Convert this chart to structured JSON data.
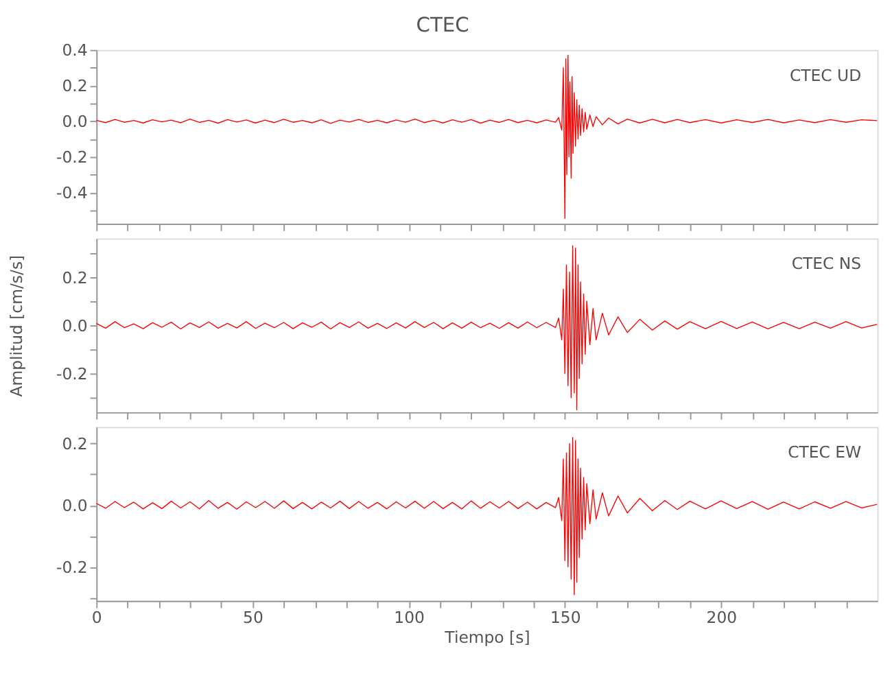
{
  "chart_data": [
    {
      "type": "line",
      "title": "CTEC",
      "annotations": [
        "CTEC   UD"
      ],
      "xlim": [
        0,
        250
      ],
      "ylim": [
        -0.575,
        0.4
      ],
      "tick_labels": "y",
      "grid": false,
      "marker": "none",
      "line_style": "solid",
      "xticks": [
        0,
        {
          "value": 10,
          "label": null
        },
        {
          "value": 20,
          "label": null
        },
        {
          "value": 30,
          "label": null
        },
        {
          "value": 40,
          "label": null
        },
        50,
        {
          "value": 60,
          "label": null
        },
        {
          "value": 70,
          "label": null
        },
        {
          "value": 80,
          "label": null
        },
        {
          "value": 90,
          "label": null
        },
        100,
        {
          "value": 110,
          "label": null
        },
        {
          "value": 120,
          "label": null
        },
        {
          "value": 130,
          "label": null
        },
        {
          "value": 140,
          "label": null
        },
        150,
        {
          "value": 160,
          "label": null
        },
        {
          "value": 170,
          "label": null
        },
        {
          "value": 180,
          "label": null
        },
        {
          "value": 190,
          "label": null
        },
        200,
        {
          "value": 210,
          "label": null
        },
        {
          "value": 220,
          "label": null
        },
        {
          "value": 230,
          "label": null
        },
        {
          "value": 240,
          "label": null
        }
      ],
      "yticks": [
        {
          "value": -0.5,
          "label": null
        },
        -0.4,
        {
          "value": -0.3,
          "label": null
        },
        -0.2,
        {
          "value": -0.1,
          "label": null
        },
        {
          "value": 0,
          "label": "0.0"
        },
        {
          "value": 0.1,
          "label": null
        },
        0.2,
        {
          "value": 0.3,
          "label": null
        },
        0.4
      ],
      "series": [
        {
          "color": "#ff0000",
          "x": [
            0,
            3,
            6,
            9,
            12,
            15,
            18,
            21,
            24,
            27,
            30,
            33,
            36,
            39,
            42,
            45,
            48,
            51,
            54,
            57,
            60,
            63,
            66,
            69,
            72,
            75,
            78,
            81,
            84,
            87,
            90,
            93,
            96,
            99,
            102,
            105,
            108,
            111,
            114,
            117,
            120,
            123,
            126,
            129,
            132,
            135,
            138,
            141,
            144,
            147,
            148,
            149,
            149.5,
            150,
            150.3,
            150.6,
            151,
            151.3,
            151.6,
            152,
            152.3,
            152.6,
            153,
            153.4,
            153.8,
            154.2,
            154.6,
            155,
            155.5,
            156,
            156.5,
            157,
            158,
            159,
            160,
            162,
            164,
            167,
            170,
            174,
            178,
            182,
            186,
            190,
            195,
            200,
            205,
            210,
            215,
            220,
            225,
            230,
            235,
            240,
            245,
            250
          ],
          "values": [
            0.005,
            -0.008,
            0.01,
            -0.006,
            0.004,
            -0.01,
            0.008,
            -0.004,
            0.006,
            -0.009,
            0.012,
            -0.007,
            0.005,
            -0.011,
            0.009,
            -0.005,
            0.007,
            -0.01,
            0.006,
            -0.008,
            0.011,
            -0.006,
            0.004,
            -0.009,
            0.008,
            -0.012,
            0.006,
            -0.005,
            0.01,
            -0.007,
            0.005,
            -0.009,
            0.007,
            -0.006,
            0.012,
            -0.008,
            0.005,
            -0.01,
            0.008,
            -0.006,
            0.009,
            -0.011,
            0.006,
            -0.007,
            0.01,
            -0.008,
            0.005,
            -0.009,
            0.007,
            -0.006,
            0.02,
            -0.05,
            0.3,
            -0.545,
            0.35,
            -0.3,
            0.37,
            -0.2,
            0.22,
            -0.32,
            0.25,
            -0.18,
            0.16,
            -0.14,
            0.12,
            -0.1,
            0.09,
            -0.08,
            0.07,
            -0.06,
            0.05,
            -0.045,
            0.035,
            -0.03,
            0.025,
            -0.02,
            0.018,
            -0.015,
            0.012,
            -0.01,
            0.011,
            -0.009,
            0.01,
            -0.008,
            0.009,
            -0.01,
            0.008,
            -0.007,
            0.01,
            -0.009,
            0.007,
            -0.008,
            0.009,
            -0.006,
            0.008,
            0.003
          ]
        }
      ]
    },
    {
      "type": "line",
      "ylabel": "Amplitud [cm/s/s]",
      "annotations": [
        "CTEC   NS"
      ],
      "xlim": [
        0,
        250
      ],
      "ylim": [
        -0.36,
        0.36
      ],
      "tick_labels": "y",
      "grid": false,
      "marker": "none",
      "line_style": "solid",
      "xticks": [
        0,
        {
          "value": 10,
          "label": null
        },
        {
          "value": 20,
          "label": null
        },
        {
          "value": 30,
          "label": null
        },
        {
          "value": 40,
          "label": null
        },
        50,
        {
          "value": 60,
          "label": null
        },
        {
          "value": 70,
          "label": null
        },
        {
          "value": 80,
          "label": null
        },
        {
          "value": 90,
          "label": null
        },
        100,
        {
          "value": 110,
          "label": null
        },
        {
          "value": 120,
          "label": null
        },
        {
          "value": 130,
          "label": null
        },
        {
          "value": 140,
          "label": null
        },
        150,
        {
          "value": 160,
          "label": null
        },
        {
          "value": 170,
          "label": null
        },
        {
          "value": 180,
          "label": null
        },
        {
          "value": 190,
          "label": null
        },
        200,
        {
          "value": 210,
          "label": null
        },
        {
          "value": 220,
          "label": null
        },
        {
          "value": 230,
          "label": null
        },
        {
          "value": 240,
          "label": null
        }
      ],
      "yticks": [
        {
          "value": -0.3,
          "label": null
        },
        -0.2,
        {
          "value": -0.1,
          "label": null
        },
        {
          "value": 0,
          "label": "0.0"
        },
        {
          "value": 0.1,
          "label": null
        },
        0.2,
        {
          "value": 0.3,
          "label": null
        }
      ],
      "series": [
        {
          "color": "#ff0000",
          "x": [
            0,
            3,
            6,
            9,
            12,
            15,
            18,
            21,
            24,
            27,
            30,
            33,
            36,
            39,
            42,
            45,
            48,
            51,
            54,
            57,
            60,
            63,
            66,
            69,
            72,
            75,
            78,
            81,
            84,
            87,
            90,
            93,
            96,
            99,
            102,
            105,
            108,
            111,
            114,
            117,
            120,
            123,
            126,
            129,
            132,
            135,
            138,
            141,
            144,
            147,
            148,
            149,
            149.5,
            150,
            150.5,
            151,
            151.5,
            152,
            152.5,
            153,
            153.4,
            153.8,
            154.2,
            154.6,
            155,
            155.5,
            156,
            156.5,
            157,
            158,
            159,
            160,
            162,
            164,
            167,
            170,
            174,
            178,
            182,
            186,
            190,
            195,
            200,
            205,
            210,
            215,
            220,
            225,
            230,
            235,
            240,
            245,
            250
          ],
          "values": [
            0.008,
            -0.012,
            0.015,
            -0.01,
            0.006,
            -0.014,
            0.011,
            -0.008,
            0.013,
            -0.015,
            0.01,
            -0.009,
            0.014,
            -0.012,
            0.008,
            -0.011,
            0.015,
            -0.013,
            0.009,
            -0.01,
            0.012,
            -0.014,
            0.01,
            -0.008,
            0.013,
            -0.015,
            0.011,
            -0.009,
            0.014,
            -0.012,
            0.008,
            -0.013,
            0.01,
            -0.011,
            0.015,
            -0.009,
            0.012,
            -0.014,
            0.01,
            -0.012,
            0.013,
            -0.01,
            0.009,
            -0.013,
            0.011,
            -0.012,
            0.014,
            -0.01,
            0.012,
            -0.009,
            0.03,
            -0.06,
            0.15,
            -0.2,
            0.25,
            -0.25,
            0.22,
            -0.3,
            0.33,
            -0.28,
            0.32,
            -0.35,
            0.25,
            -0.22,
            0.18,
            -0.16,
            0.13,
            -0.12,
            0.1,
            -0.08,
            0.07,
            -0.06,
            0.05,
            -0.04,
            0.035,
            -0.03,
            0.025,
            -0.02,
            0.018,
            -0.016,
            0.015,
            -0.014,
            0.016,
            -0.013,
            0.014,
            -0.015,
            0.012,
            -0.014,
            0.013,
            -0.012,
            0.015,
            -0.011,
            0.004
          ]
        }
      ]
    },
    {
      "type": "line",
      "xlabel": "Tiempo [s]",
      "annotations": [
        "CTEC   EW"
      ],
      "xlim": [
        0,
        250
      ],
      "ylim": [
        -0.31,
        0.254
      ],
      "grid": false,
      "marker": "none",
      "line_style": "solid",
      "xticks": [
        0,
        {
          "value": 10,
          "label": null
        },
        {
          "value": 20,
          "label": null
        },
        {
          "value": 30,
          "label": null
        },
        {
          "value": 40,
          "label": null
        },
        50,
        {
          "value": 60,
          "label": null
        },
        {
          "value": 70,
          "label": null
        },
        {
          "value": 80,
          "label": null
        },
        {
          "value": 90,
          "label": null
        },
        100,
        {
          "value": 110,
          "label": null
        },
        {
          "value": 120,
          "label": null
        },
        {
          "value": 130,
          "label": null
        },
        {
          "value": 140,
          "label": null
        },
        150,
        {
          "value": 160,
          "label": null
        },
        {
          "value": 170,
          "label": null
        },
        {
          "value": 180,
          "label": null
        },
        {
          "value": 190,
          "label": null
        },
        200,
        {
          "value": 210,
          "label": null
        },
        {
          "value": 220,
          "label": null
        },
        {
          "value": 230,
          "label": null
        },
        {
          "value": 240,
          "label": null
        }
      ],
      "yticks": [
        {
          "value": -0.3,
          "label": null
        },
        -0.2,
        {
          "value": -0.1,
          "label": null
        },
        {
          "value": 0,
          "label": "0.0"
        },
        {
          "value": 0.1,
          "label": null
        },
        0.2
      ],
      "series": [
        {
          "color": "#ff0000",
          "x": [
            0,
            3,
            6,
            9,
            12,
            15,
            18,
            21,
            24,
            27,
            30,
            33,
            36,
            39,
            42,
            45,
            48,
            51,
            54,
            57,
            60,
            63,
            66,
            69,
            72,
            75,
            78,
            81,
            84,
            87,
            90,
            93,
            96,
            99,
            102,
            105,
            108,
            111,
            114,
            117,
            120,
            123,
            126,
            129,
            132,
            135,
            138,
            141,
            144,
            147,
            148,
            149,
            149.5,
            150,
            150.5,
            151,
            151.5,
            152,
            152.5,
            153,
            153.4,
            153.8,
            154.2,
            154.6,
            155,
            155.5,
            156,
            156.5,
            157,
            158,
            159,
            160,
            162,
            164,
            167,
            170,
            174,
            178,
            182,
            186,
            190,
            195,
            200,
            205,
            210,
            215,
            220,
            225,
            230,
            235,
            240,
            245,
            250
          ],
          "values": [
            0.006,
            -0.01,
            0.012,
            -0.008,
            0.01,
            -0.012,
            0.008,
            -0.011,
            0.013,
            -0.009,
            0.011,
            -0.012,
            0.015,
            -0.01,
            0.009,
            -0.013,
            0.011,
            -0.008,
            0.012,
            -0.01,
            0.014,
            -0.011,
            0.009,
            -0.012,
            0.01,
            -0.009,
            0.013,
            -0.011,
            0.012,
            -0.01,
            0.009,
            -0.012,
            0.011,
            -0.009,
            0.013,
            -0.01,
            0.012,
            -0.011,
            0.009,
            -0.012,
            0.014,
            -0.01,
            0.011,
            -0.009,
            0.012,
            -0.011,
            0.01,
            -0.012,
            0.009,
            -0.008,
            0.025,
            -0.05,
            0.15,
            -0.18,
            0.17,
            -0.2,
            0.2,
            -0.24,
            0.22,
            -0.29,
            0.21,
            -0.25,
            0.15,
            -0.17,
            0.12,
            -0.11,
            0.09,
            -0.08,
            0.07,
            -0.06,
            0.05,
            -0.045,
            0.04,
            -0.035,
            0.03,
            -0.025,
            0.022,
            -0.018,
            0.015,
            -0.014,
            0.013,
            -0.012,
            0.014,
            -0.011,
            0.012,
            -0.013,
            0.01,
            -0.012,
            0.011,
            -0.01,
            0.012,
            -0.009,
            0.003
          ]
        }
      ]
    }
  ]
}
